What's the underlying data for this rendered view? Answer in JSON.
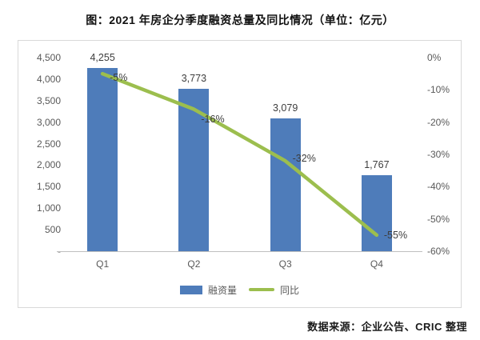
{
  "chart_data": {
    "type": "bar",
    "subtype": "bar-line-combo",
    "title": "图：2021 年房企分季度融资总量及同比情况（单位：亿元）",
    "source": "数据来源：企业公告、CRIC 整理",
    "categories": [
      "Q1",
      "Q2",
      "Q3",
      "Q4"
    ],
    "series": [
      {
        "name": "融资量",
        "chart": "bar",
        "axis": "left",
        "color": "#4E7CBA",
        "values": [
          4255,
          3773,
          3079,
          1767
        ],
        "labels": [
          "4,255",
          "3,773",
          "3,079",
          "1,767"
        ]
      },
      {
        "name": "同比",
        "chart": "line",
        "axis": "right",
        "color": "#9CBE4E",
        "values": [
          -5,
          -16,
          -32,
          -55
        ],
        "labels": [
          "-5%",
          "-16%",
          "-32%",
          "-55%"
        ]
      }
    ],
    "left_axis": {
      "min": 0,
      "max": 4500,
      "step": 500,
      "ticks": [
        "4,500",
        "4,000",
        "3,500",
        "3,000",
        "2,500",
        "2,000",
        "1,500",
        "1,000",
        "500",
        "-"
      ]
    },
    "right_axis": {
      "min": -60,
      "max": 0,
      "step": 10,
      "ticks": [
        "0%",
        "-10%",
        "-20%",
        "-30%",
        "-40%",
        "-50%",
        "-60%"
      ]
    },
    "grid": false,
    "legend_position": "bottom-center",
    "colors": {
      "axis_text": "#595959",
      "label_text": "#3d3d3d",
      "frame_border": "#d9d9d9",
      "axis_line": "#bfbfbf",
      "background": "#ffffff"
    }
  }
}
